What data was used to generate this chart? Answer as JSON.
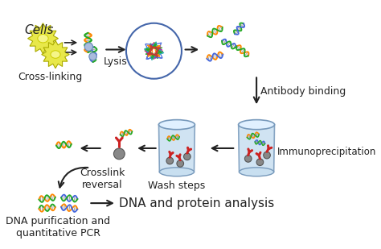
{
  "background_color": "#ffffff",
  "labels": {
    "cells": "Cells",
    "cross_linking": "Cross-linking",
    "lysis": "Lysis",
    "antibody_binding": "Antibody binding",
    "immunoprecipitation": "Immunoprecipitation",
    "wash_steps": "Wash steps",
    "crosslink_reversal": "Crosslink\nreversal",
    "dna_purification": "DNA purification and\nquantitative PCR",
    "dna_protein": "DNA and protein analysis"
  },
  "cell_color": "#e8e84a",
  "cell_edge_color": "#aaaa00",
  "nucleus_color": "#f5f5a0",
  "circle_edge_color": "#4466aa",
  "arrow_color": "#222222",
  "dna_strand1_colors": [
    "#ff8800",
    "#22aa22",
    "#4466dd",
    "#ff8800",
    "#22aa22"
  ],
  "dna_strand2_colors": [
    "#22aa22",
    "#4466dd",
    "#ff8800",
    "#22aa22",
    "#4466dd"
  ],
  "bead_color": "#888888",
  "antibody_color": "#cc2222",
  "tube_body_color": "#c8dff0",
  "tube_edge_color": "#7799bb",
  "font_size_cells": 11,
  "font_size_label": 9,
  "font_size_dna_protein": 11
}
